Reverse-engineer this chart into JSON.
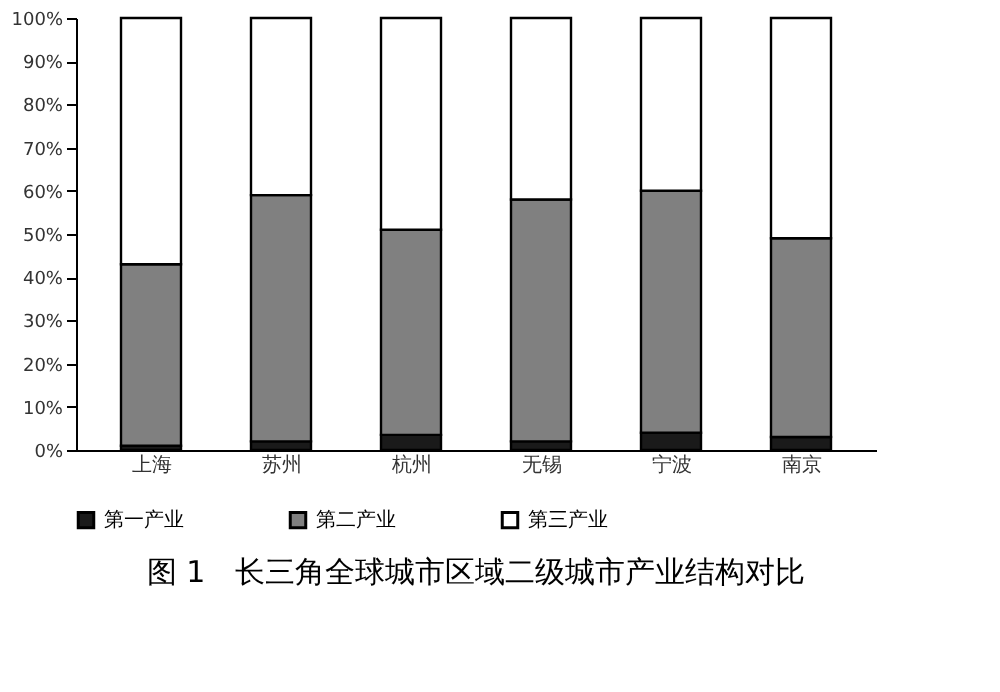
{
  "chart_data": {
    "type": "bar",
    "stacked": true,
    "title": "图 1　长三角全球城市区域二级城市产业结构对比",
    "categories": [
      "上海",
      "苏州",
      "杭州",
      "无锡",
      "宁波",
      "南京"
    ],
    "series": [
      {
        "name": "第一产业",
        "color": "#1a1a1a",
        "values": [
          1,
          2,
          3.5,
          2,
          4,
          3
        ]
      },
      {
        "name": "第二产业",
        "color": "#808080",
        "values": [
          42,
          57,
          47.5,
          56,
          56,
          46
        ]
      },
      {
        "name": "第三产业",
        "color": "#ffffff",
        "values": [
          57,
          41,
          49,
          42,
          40,
          51
        ]
      }
    ],
    "ylim": [
      0,
      100
    ],
    "yticks": [
      {
        "value": 0,
        "label": "0%"
      },
      {
        "value": 10,
        "label": "10%"
      },
      {
        "value": 20,
        "label": "20%"
      },
      {
        "value": 30,
        "label": "30%"
      },
      {
        "value": 40,
        "label": "40%"
      },
      {
        "value": 50,
        "label": "50%"
      },
      {
        "value": 60,
        "label": "60%"
      },
      {
        "value": 70,
        "label": "70%"
      },
      {
        "value": 80,
        "label": "80%"
      },
      {
        "value": 90,
        "label": "90%"
      },
      {
        "value": 100,
        "label": "100%"
      }
    ],
    "grid": false,
    "legend": "bottom"
  }
}
